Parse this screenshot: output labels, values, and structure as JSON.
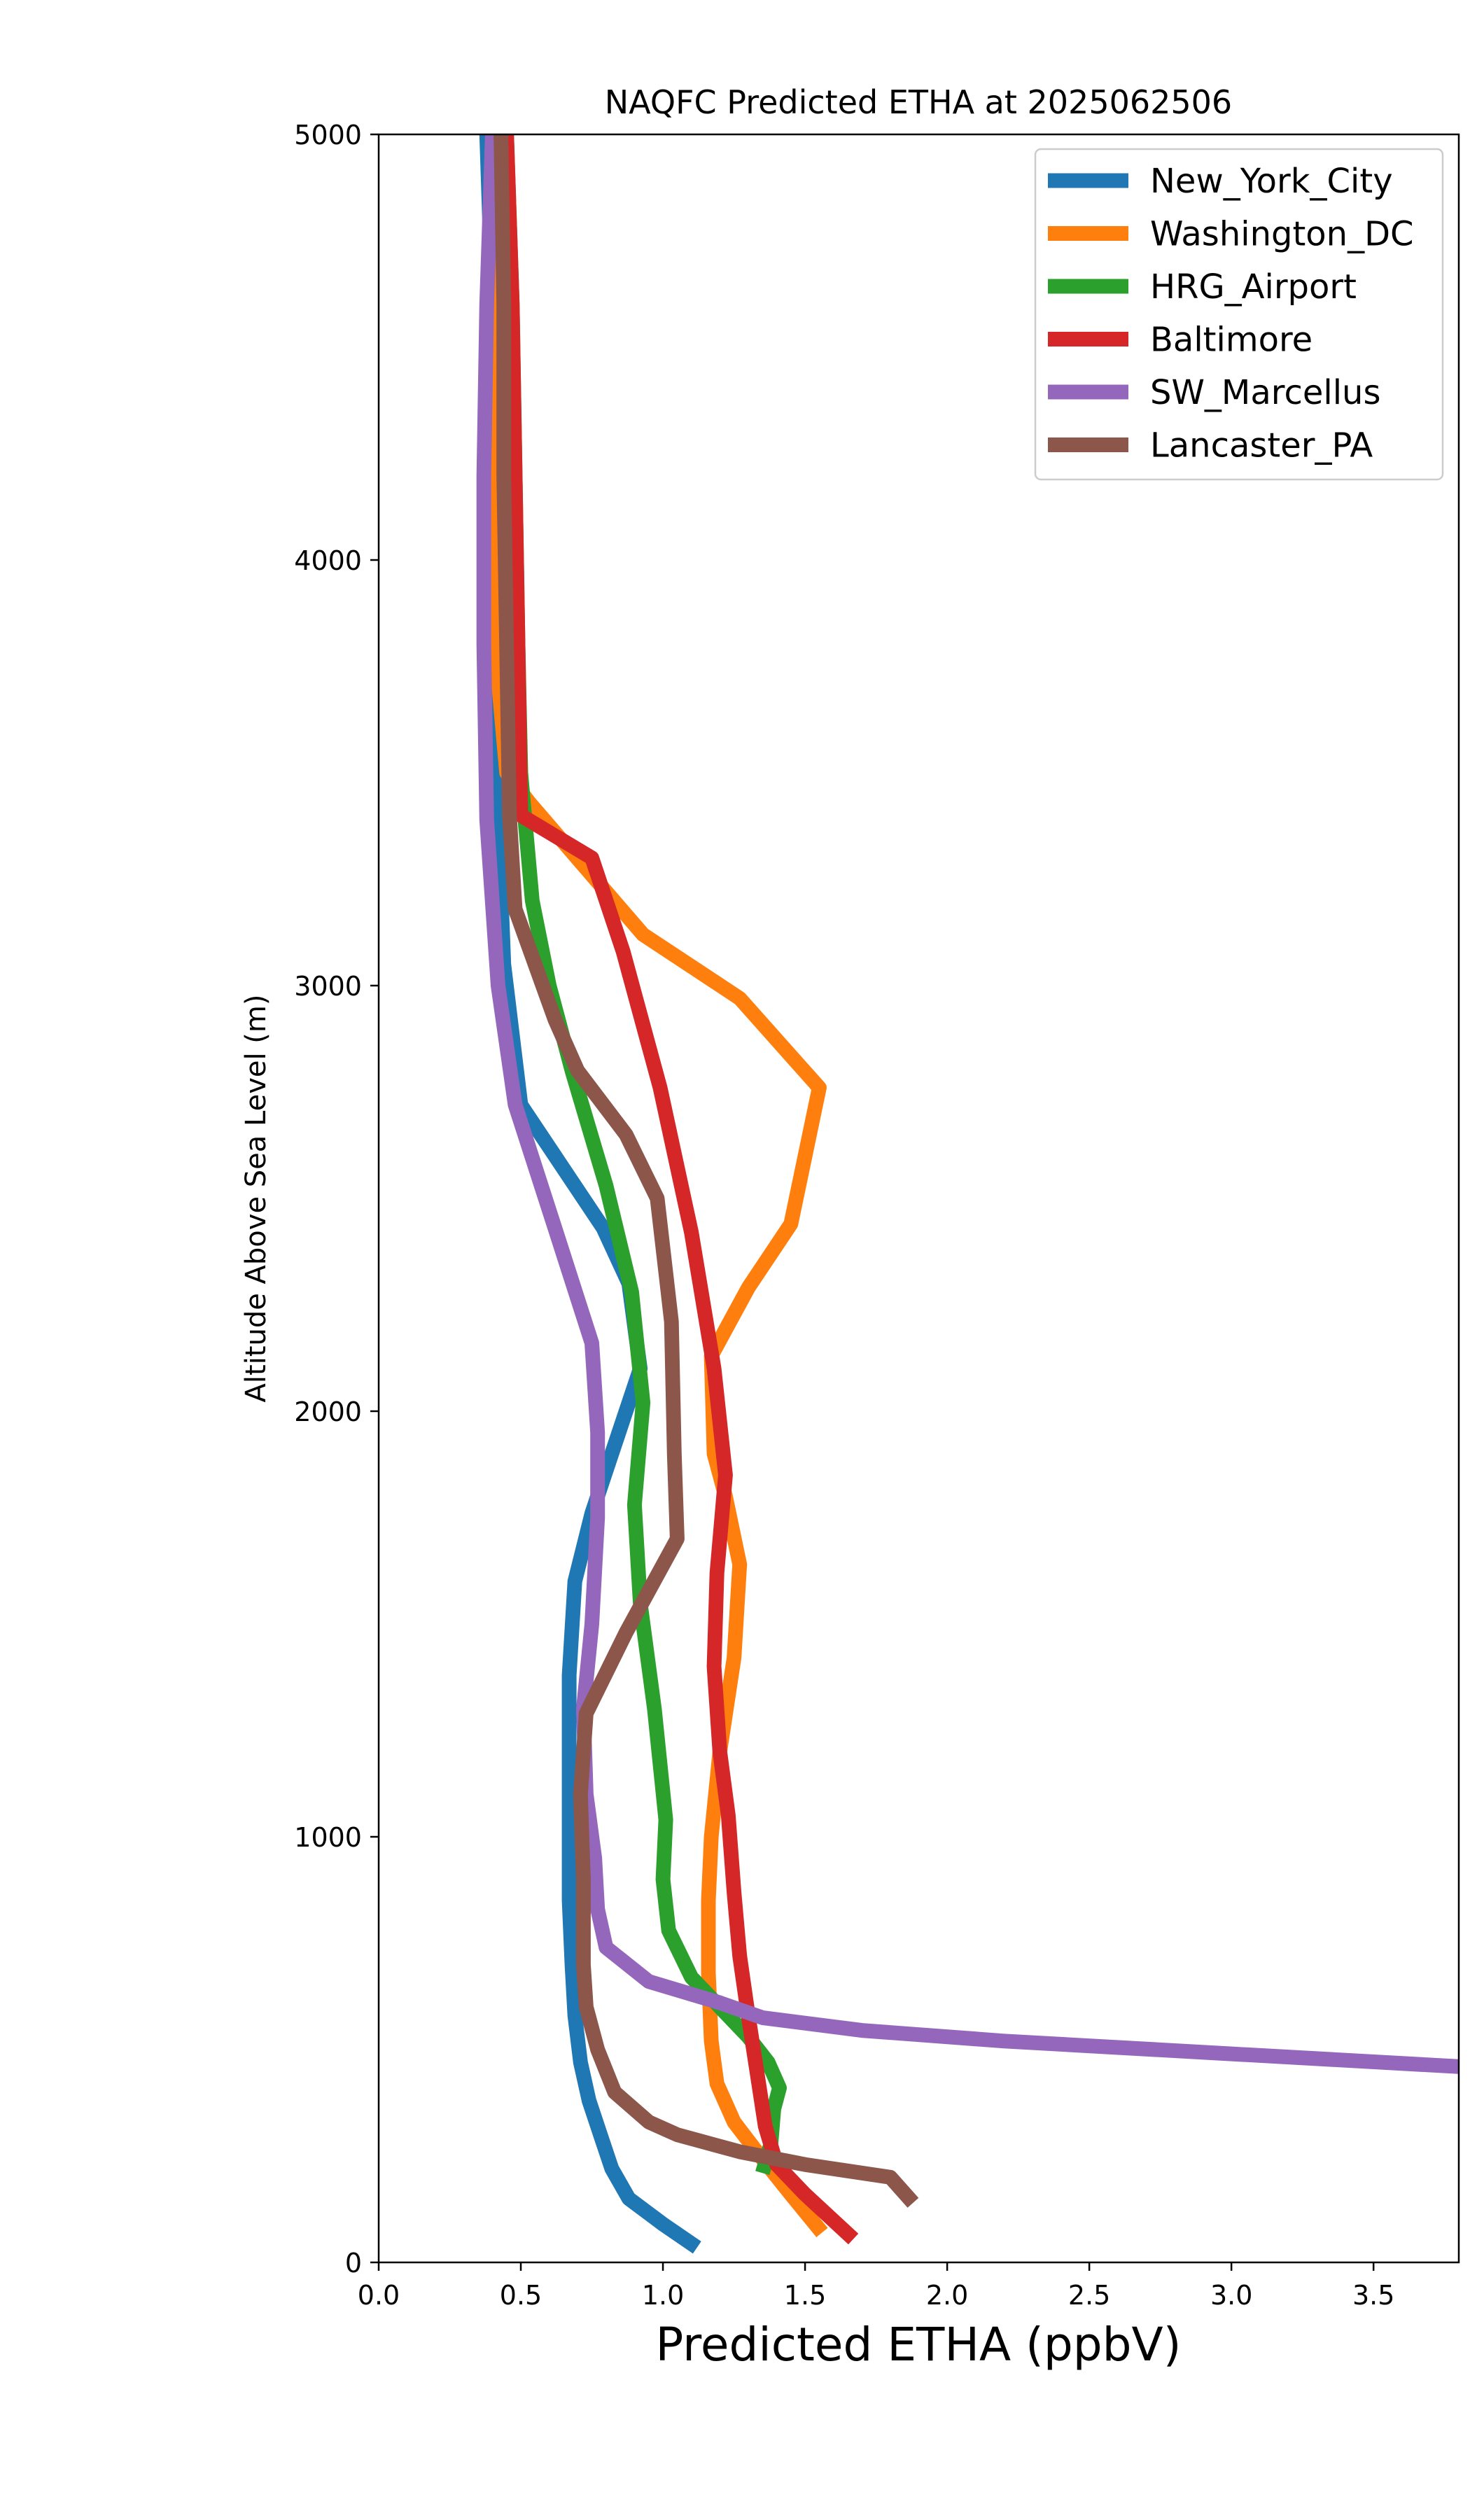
{
  "chart_data": {
    "type": "line",
    "title": "NAQFC Predicted ETHA at 2025062506",
    "xlabel": "Predicted ETHA (ppbV)",
    "ylabel": "Altitude Above Sea Level (m)",
    "xlim": [
      0.0,
      3.8
    ],
    "ylim": [
      0,
      5000
    ],
    "x_ticks": [
      0.0,
      0.5,
      1.0,
      1.5,
      2.0,
      2.5,
      3.0,
      3.5
    ],
    "x_tick_labels": [
      "0.0",
      "0.5",
      "1.0",
      "1.5",
      "2.0",
      "2.5",
      "3.0",
      "3.5"
    ],
    "y_ticks": [
      0,
      1000,
      2000,
      3000,
      4000,
      5000
    ],
    "y_tick_labels": [
      "0",
      "1000",
      "2000",
      "3000",
      "4000",
      "5000"
    ],
    "grid": false,
    "legend_position": "top-right",
    "series": [
      {
        "name": "New_York_City",
        "color": "#1f77b4",
        "points": [
          [
            1.12,
            35
          ],
          [
            1.0,
            90
          ],
          [
            0.88,
            150
          ],
          [
            0.82,
            220
          ],
          [
            0.78,
            300
          ],
          [
            0.74,
            380
          ],
          [
            0.71,
            470
          ],
          [
            0.69,
            580
          ],
          [
            0.68,
            700
          ],
          [
            0.67,
            850
          ],
          [
            0.67,
            1000
          ],
          [
            0.67,
            1200
          ],
          [
            0.67,
            1380
          ],
          [
            0.69,
            1600
          ],
          [
            0.75,
            1760
          ],
          [
            0.83,
            1920
          ],
          [
            0.92,
            2100
          ],
          [
            0.88,
            2300
          ],
          [
            0.79,
            2430
          ],
          [
            0.65,
            2570
          ],
          [
            0.5,
            2720
          ],
          [
            0.44,
            3050
          ],
          [
            0.42,
            3400
          ],
          [
            0.41,
            3800
          ],
          [
            0.41,
            4200
          ],
          [
            0.4,
            4600
          ],
          [
            0.38,
            5000
          ]
        ]
      },
      {
        "name": "Washington_DC",
        "color": "#ff7f0e",
        "points": [
          [
            1.56,
            70
          ],
          [
            1.45,
            160
          ],
          [
            1.33,
            260
          ],
          [
            1.25,
            330
          ],
          [
            1.19,
            420
          ],
          [
            1.17,
            520
          ],
          [
            1.16,
            680
          ],
          [
            1.16,
            850
          ],
          [
            1.17,
            1000
          ],
          [
            1.2,
            1200
          ],
          [
            1.25,
            1420
          ],
          [
            1.27,
            1640
          ],
          [
            1.22,
            1800
          ],
          [
            1.18,
            1900
          ],
          [
            1.17,
            2130
          ],
          [
            1.3,
            2290
          ],
          [
            1.45,
            2440
          ],
          [
            1.55,
            2760
          ],
          [
            1.27,
            2970
          ],
          [
            0.93,
            3120
          ],
          [
            0.53,
            3430
          ],
          [
            0.45,
            3500
          ],
          [
            0.41,
            3800
          ],
          [
            0.41,
            4300
          ],
          [
            0.42,
            4700
          ],
          [
            0.43,
            5000
          ]
        ]
      },
      {
        "name": "HRG_Airport",
        "color": "#2ca02c",
        "points": [
          [
            1.35,
            210
          ],
          [
            1.38,
            280
          ],
          [
            1.39,
            360
          ],
          [
            1.41,
            410
          ],
          [
            1.37,
            470
          ],
          [
            1.3,
            530
          ],
          [
            1.2,
            600
          ],
          [
            1.1,
            670
          ],
          [
            1.02,
            780
          ],
          [
            1.0,
            900
          ],
          [
            1.01,
            1040
          ],
          [
            0.97,
            1300
          ],
          [
            0.92,
            1550
          ],
          [
            0.9,
            1780
          ],
          [
            0.93,
            2020
          ],
          [
            0.89,
            2280
          ],
          [
            0.8,
            2530
          ],
          [
            0.68,
            2800
          ],
          [
            0.6,
            3000
          ],
          [
            0.54,
            3200
          ],
          [
            0.5,
            3500
          ],
          [
            0.49,
            3800
          ],
          [
            0.48,
            4200
          ],
          [
            0.47,
            4600
          ],
          [
            0.45,
            5000
          ]
        ]
      },
      {
        "name": "Baltimore",
        "color": "#d62728",
        "points": [
          [
            1.67,
            55
          ],
          [
            1.5,
            160
          ],
          [
            1.4,
            230
          ],
          [
            1.36,
            320
          ],
          [
            1.33,
            450
          ],
          [
            1.3,
            580
          ],
          [
            1.27,
            720
          ],
          [
            1.25,
            870
          ],
          [
            1.23,
            1050
          ],
          [
            1.2,
            1200
          ],
          [
            1.18,
            1400
          ],
          [
            1.19,
            1620
          ],
          [
            1.22,
            1850
          ],
          [
            1.18,
            2100
          ],
          [
            1.1,
            2420
          ],
          [
            0.99,
            2760
          ],
          [
            0.86,
            3080
          ],
          [
            0.75,
            3300
          ],
          [
            0.5,
            3400
          ],
          [
            0.49,
            3800
          ],
          [
            0.48,
            4200
          ],
          [
            0.47,
            4600
          ],
          [
            0.45,
            5000
          ]
        ]
      },
      {
        "name": "SW_Marcellus",
        "color": "#9467bd",
        "points": [
          [
            3.8,
            460
          ],
          [
            3.0,
            490
          ],
          [
            2.2,
            520
          ],
          [
            1.7,
            545
          ],
          [
            1.35,
            575
          ],
          [
            1.2,
            610
          ],
          [
            0.95,
            660
          ],
          [
            0.8,
            740
          ],
          [
            0.77,
            830
          ],
          [
            0.76,
            950
          ],
          [
            0.73,
            1100
          ],
          [
            0.72,
            1300
          ],
          [
            0.75,
            1500
          ],
          [
            0.77,
            1750
          ],
          [
            0.77,
            1950
          ],
          [
            0.75,
            2160
          ],
          [
            0.62,
            2430
          ],
          [
            0.48,
            2720
          ],
          [
            0.42,
            3000
          ],
          [
            0.38,
            3390
          ],
          [
            0.37,
            3800
          ],
          [
            0.37,
            4200
          ],
          [
            0.38,
            4600
          ],
          [
            0.4,
            5000
          ]
        ]
      },
      {
        "name": "Lancaster_PA",
        "color": "#8c564b",
        "points": [
          [
            1.88,
            140
          ],
          [
            1.8,
            200
          ],
          [
            1.5,
            230
          ],
          [
            1.27,
            260
          ],
          [
            1.05,
            300
          ],
          [
            0.95,
            330
          ],
          [
            0.83,
            400
          ],
          [
            0.77,
            500
          ],
          [
            0.73,
            600
          ],
          [
            0.72,
            700
          ],
          [
            0.72,
            900
          ],
          [
            0.71,
            1100
          ],
          [
            0.73,
            1290
          ],
          [
            0.87,
            1480
          ],
          [
            1.05,
            1700
          ],
          [
            1.04,
            1900
          ],
          [
            1.03,
            2210
          ],
          [
            0.98,
            2500
          ],
          [
            0.87,
            2650
          ],
          [
            0.7,
            2800
          ],
          [
            0.62,
            2920
          ],
          [
            0.48,
            3180
          ],
          [
            0.46,
            3400
          ],
          [
            0.45,
            3800
          ],
          [
            0.44,
            4200
          ],
          [
            0.44,
            4600
          ],
          [
            0.43,
            5000
          ]
        ]
      }
    ]
  }
}
